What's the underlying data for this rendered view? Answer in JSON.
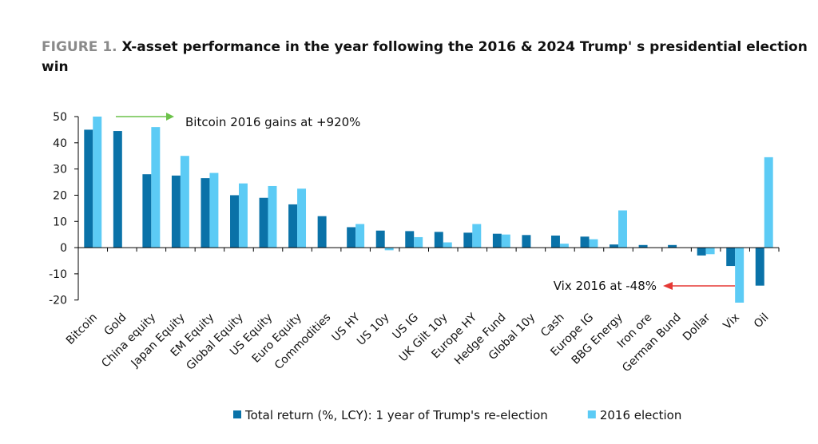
{
  "chart_data": {
    "type": "bar",
    "figure_label": "FIGURE 1.",
    "title": "X-asset performance in the year following the 2016 & 2024 Trump' s presidential election win",
    "categories": [
      "Bitcoin",
      "Gold",
      "China equity",
      "Japan Equity",
      "EM Equity",
      "Global Equity",
      "US Equity",
      "Euro Equity",
      "Commodities",
      "US HY",
      "US 10y",
      "US IG",
      "UK Gilt 10y",
      "Europe HY",
      "Hedge Fund",
      "Global 10y",
      "Cash",
      "Europe IG",
      "BBG Energy",
      "Iron ore",
      "German Bund",
      "Dollar",
      "Vix",
      "Oil"
    ],
    "series": [
      {
        "name": "Total return (%, LCY): 1 year of Trump's re-election",
        "color": "#0a72a8",
        "values": [
          45,
          44.5,
          28,
          27.5,
          26.5,
          20,
          19,
          16.5,
          12,
          7.8,
          6.5,
          6.3,
          6,
          5.7,
          5.3,
          4.8,
          4.6,
          4.2,
          1.2,
          1,
          1,
          -3,
          -7,
          -14.5
        ]
      },
      {
        "name": "2016 election",
        "color": "#5ccbf5",
        "values": [
          50,
          null,
          46,
          35,
          28.5,
          24.5,
          23.5,
          22.5,
          null,
          9,
          -1,
          4,
          2,
          9,
          5,
          null,
          1.5,
          3.2,
          14.2,
          null,
          null,
          -2.5,
          -21,
          34.5
        ]
      }
    ],
    "annotations": [
      "Bitcoin 2016 gains at +920%",
      "Vix 2016 at -48%"
    ],
    "ylim": [
      -21,
      50
    ],
    "yticks": [
      -20,
      -10,
      0,
      10,
      20,
      30,
      40,
      50
    ]
  }
}
